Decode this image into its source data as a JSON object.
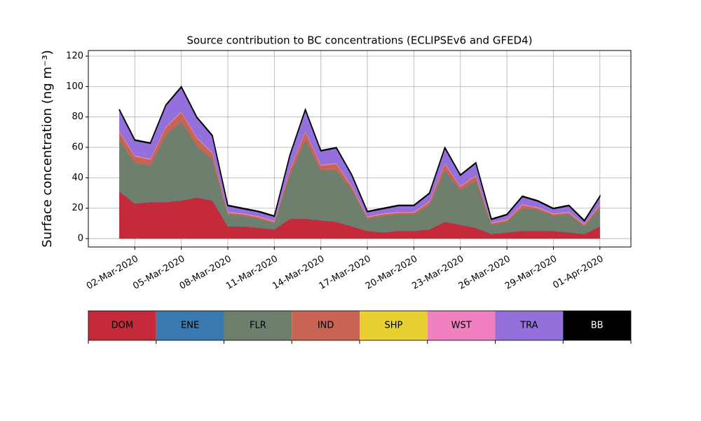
{
  "chart_data": {
    "type": "stacked-area",
    "title": "Source contribution to BC concentrations (ECLIPSEv6 and GFED4)",
    "y_label": "Surface concentration (ng m⁻³)",
    "x": [
      "2020-03-01",
      "2020-03-02",
      "2020-03-03",
      "2020-03-04",
      "2020-03-05",
      "2020-03-06",
      "2020-03-07",
      "2020-03-08",
      "2020-03-09",
      "2020-03-10",
      "2020-03-11",
      "2020-03-12",
      "2020-03-13",
      "2020-03-14",
      "2020-03-15",
      "2020-03-16",
      "2020-03-17",
      "2020-03-18",
      "2020-03-19",
      "2020-03-20",
      "2020-03-21",
      "2020-03-22",
      "2020-03-23",
      "2020-03-24",
      "2020-03-25",
      "2020-03-26",
      "2020-03-27",
      "2020-03-28",
      "2020-03-29",
      "2020-03-30",
      "2020-03-31",
      "2020-04-01"
    ],
    "series": [
      {
        "name": "DOM",
        "color": "#c42a3a",
        "values": [
          31,
          23,
          24,
          24,
          25,
          27,
          25,
          8,
          8,
          7,
          6,
          13,
          13,
          12,
          11,
          8,
          5,
          4,
          5,
          5,
          6,
          11,
          9,
          7,
          3,
          4,
          5,
          5,
          5,
          4,
          3,
          8
        ]
      },
      {
        "name": "ENE",
        "color": "#3a78b0",
        "values": [
          0.1,
          0.1,
          0.1,
          0.1,
          0.1,
          0.1,
          0.1,
          0.1,
          0.1,
          0.1,
          0.1,
          0.1,
          0.1,
          0.1,
          0.1,
          0.1,
          0.1,
          0.1,
          0.1,
          0.1,
          0.1,
          0.1,
          0.1,
          0.1,
          0.1,
          0.1,
          0.1,
          0.1,
          0.1,
          0.1,
          0.1,
          0.1
        ]
      },
      {
        "name": "FLR",
        "color": "#6e7f6e",
        "values": [
          34,
          27,
          24,
          44,
          52,
          34,
          27,
          8,
          7,
          6,
          4,
          29,
          52,
          33,
          34,
          24,
          8,
          11,
          11,
          11,
          16,
          34,
          23,
          31,
          6,
          7,
          15,
          14,
          10,
          12,
          5,
          12
        ]
      },
      {
        "name": "IND",
        "color": "#c96454",
        "values": [
          5,
          4,
          4,
          5,
          6,
          5,
          4,
          1,
          1,
          1,
          1,
          3,
          5,
          3,
          4,
          2,
          1,
          1,
          1,
          1,
          2,
          4,
          2,
          3,
          1,
          1,
          2,
          1,
          1,
          1,
          1,
          2
        ]
      },
      {
        "name": "SHP",
        "color": "#e8d030",
        "values": [
          0.1,
          0.1,
          0.1,
          0.1,
          0.1,
          0.1,
          0.1,
          0.1,
          0.1,
          0.1,
          0.1,
          0.1,
          0.1,
          0.1,
          0.1,
          0.1,
          0.1,
          0.1,
          0.1,
          0.1,
          0.1,
          0.1,
          0.1,
          0.1,
          0.1,
          0.1,
          0.1,
          0.1,
          0.1,
          0.1,
          0.1,
          0.1
        ]
      },
      {
        "name": "WST",
        "color": "#f080c0",
        "values": [
          0.4,
          0.4,
          0.4,
          0.4,
          0.4,
          0.4,
          0.4,
          0.4,
          0.4,
          0.4,
          0.4,
          0.4,
          0.4,
          0.4,
          0.4,
          0.4,
          0.4,
          0.4,
          0.4,
          0.4,
          0.4,
          0.4,
          0.4,
          0.4,
          0.4,
          0.4,
          0.4,
          0.4,
          0.4,
          0.4,
          0.4,
          0.4
        ]
      },
      {
        "name": "TRA",
        "color": "#9370db",
        "values": [
          14,
          10,
          10,
          14,
          16,
          13,
          11,
          4,
          3,
          3,
          3,
          9,
          14,
          9,
          10,
          7,
          3,
          3,
          4,
          4,
          5,
          10,
          7,
          8,
          2,
          3,
          5,
          4,
          3,
          4,
          2,
          5
        ]
      },
      {
        "name": "BB",
        "color": "#000000",
        "values": [
          0.4,
          0.4,
          0.4,
          0.4,
          0.4,
          0.4,
          0.4,
          0.4,
          0.4,
          0.4,
          0.4,
          0.4,
          0.4,
          0.4,
          0.4,
          0.4,
          0.4,
          0.4,
          0.4,
          0.4,
          0.4,
          0.4,
          0.4,
          0.4,
          0.4,
          0.4,
          0.4,
          0.4,
          0.4,
          0.4,
          0.4,
          0.4
        ]
      }
    ],
    "xlim": [
      "2020-02-28",
      "2020-04-03"
    ],
    "xticks": [
      {
        "value": "2020-03-02",
        "label": "02-Mar-2020"
      },
      {
        "value": "2020-03-05",
        "label": "05-Mar-2020"
      },
      {
        "value": "2020-03-08",
        "label": "08-Mar-2020"
      },
      {
        "value": "2020-03-11",
        "label": "11-Mar-2020"
      },
      {
        "value": "2020-03-14",
        "label": "14-Mar-2020"
      },
      {
        "value": "2020-03-17",
        "label": "17-Mar-2020"
      },
      {
        "value": "2020-03-20",
        "label": "20-Mar-2020"
      },
      {
        "value": "2020-03-23",
        "label": "23-Mar-2020"
      },
      {
        "value": "2020-03-26",
        "label": "26-Mar-2020"
      },
      {
        "value": "2020-03-29",
        "label": "29-Mar-2020"
      },
      {
        "value": "2020-04-01",
        "label": "01-Apr-2020"
      }
    ],
    "ylim": [
      -5.5,
      123.7
    ],
    "yticks": [
      0,
      20,
      40,
      60,
      80,
      100,
      120
    ],
    "grid": true
  }
}
